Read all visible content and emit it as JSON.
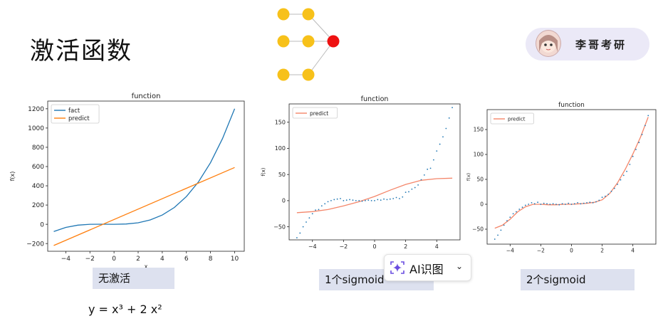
{
  "page": {
    "title": "激活函数",
    "brand": "李哥考研",
    "formula": "y = x³ + 2 x²",
    "ai_button": "AI识图",
    "captions": [
      "无激活",
      "1个sigmoid",
      "2个sigmoid"
    ]
  },
  "colors": {
    "blue": "#1f77b4",
    "orange": "#ff7f0e",
    "salmon": "#f4866a",
    "node_yellow": "#f7c11a",
    "node_red": "#ee1111",
    "caption_bg": "#dde1ef"
  },
  "chart_data": [
    {
      "type": "line",
      "title": "function",
      "xlabel": "x",
      "ylabel": "f(x)",
      "xlim": [
        -5.5,
        10.8
      ],
      "ylim": [
        -280,
        1280
      ],
      "xticks": [
        -4,
        -2,
        0,
        2,
        4,
        6,
        8,
        10
      ],
      "yticks": [
        -200,
        0,
        200,
        400,
        600,
        800,
        1000,
        1200
      ],
      "legend": "top-left",
      "series": [
        {
          "name": "fact",
          "color": "#1f77b4",
          "x": [
            -5,
            -4,
            -3,
            -2,
            -1,
            0,
            1,
            2,
            3,
            4,
            5,
            6,
            7,
            8,
            9,
            10
          ],
          "y": [
            -75,
            -32,
            -9,
            0,
            1,
            0,
            3,
            16,
            45,
            96,
            175,
            288,
            441,
            640,
            891,
            1200
          ]
        },
        {
          "name": "predict",
          "color": "#ff7f0e",
          "x": [
            -5,
            10
          ],
          "y": [
            -220,
            590
          ]
        }
      ]
    },
    {
      "type": "scatter",
      "title": "function",
      "xlabel": "x",
      "ylabel": "f(x)",
      "xlim": [
        -5.5,
        5.5
      ],
      "ylim": [
        -75,
        185
      ],
      "xticks": [
        -4,
        -2,
        0,
        2,
        4
      ],
      "yticks": [
        -50,
        0,
        50,
        100,
        150
      ],
      "legend": "top-left",
      "series": [
        {
          "name": "predict",
          "color": "#f4866a",
          "mode": "line",
          "x": [
            -5,
            -4,
            -3,
            -2,
            -1,
            0,
            1,
            2,
            3,
            4,
            5
          ],
          "y": [
            -23,
            -21,
            -17,
            -10,
            -2,
            8,
            20,
            31,
            39,
            42,
            43
          ]
        },
        {
          "name": "",
          "color": "#1f77b4",
          "mode": "points",
          "x": [
            -5,
            -4.8,
            -4.6,
            -4.4,
            -4.2,
            -4,
            -3.8,
            -3.6,
            -3.4,
            -3.2,
            -3,
            -2.8,
            -2.6,
            -2.4,
            -2.2,
            -2,
            -1.8,
            -1.6,
            -1.4,
            -1.2,
            -1,
            -0.8,
            -0.6,
            -0.4,
            -0.2,
            0,
            0.2,
            0.4,
            0.6,
            0.8,
            1,
            1.2,
            1.4,
            1.6,
            1.8,
            2,
            2.2,
            2.4,
            2.6,
            2.8,
            3,
            3.2,
            3.4,
            3.6,
            3.8,
            4,
            4.2,
            4.4,
            4.6,
            4.8,
            5
          ],
          "y": [
            -71,
            -62,
            -50,
            -41,
            -33,
            -25,
            -18,
            -17,
            -10,
            -6,
            -2,
            0,
            2,
            3,
            4,
            0,
            1,
            2,
            1,
            0,
            0,
            -1,
            0,
            1,
            0,
            0,
            2,
            1,
            3,
            2,
            3,
            4,
            6,
            4,
            7,
            16,
            17,
            22,
            25,
            30,
            40,
            49,
            60,
            62,
            78,
            95,
            108,
            122,
            138,
            158,
            178
          ]
        }
      ]
    },
    {
      "type": "scatter",
      "title": "function",
      "xlabel": "x",
      "ylabel": "f(x)",
      "xlim": [
        -5.5,
        5.5
      ],
      "ylim": [
        -80,
        190
      ],
      "xticks": [
        -4,
        -2,
        0,
        2,
        4
      ],
      "yticks": [
        -50,
        0,
        50,
        100,
        150
      ],
      "legend": "top-left",
      "series": [
        {
          "name": "predict",
          "color": "#f4866a",
          "mode": "line",
          "x": [
            -5,
            -4.5,
            -4,
            -3.5,
            -3,
            -2.5,
            -2,
            -1.5,
            -1,
            -0.5,
            0,
            0.5,
            1,
            1.5,
            2,
            2.5,
            3,
            3.5,
            4,
            4.5,
            5
          ],
          "y": [
            -48,
            -42,
            -30,
            -15,
            -5,
            0,
            0,
            -1,
            -1,
            0,
            0,
            1,
            2,
            4,
            9,
            22,
            43,
            70,
            101,
            135,
            175
          ]
        },
        {
          "name": "",
          "color": "#1f77b4",
          "mode": "points",
          "x": [
            -5,
            -4.8,
            -4.6,
            -4.4,
            -4.2,
            -4,
            -3.8,
            -3.6,
            -3.4,
            -3.2,
            -3,
            -2.8,
            -2.6,
            -2.4,
            -2.2,
            -2,
            -1.8,
            -1.6,
            -1.4,
            -1.2,
            -1,
            -0.8,
            -0.6,
            -0.4,
            -0.2,
            0,
            0.2,
            0.4,
            0.6,
            0.8,
            1,
            1.2,
            1.4,
            1.6,
            1.8,
            2,
            2.2,
            2.4,
            2.6,
            2.8,
            3,
            3.2,
            3.4,
            3.6,
            3.8,
            4,
            4.2,
            4.4,
            4.6,
            4.8,
            5
          ],
          "y": [
            -70,
            -62,
            -52,
            -42,
            -33,
            -26,
            -19,
            -15,
            -10,
            -6,
            -2,
            0,
            3,
            1,
            4,
            0,
            2,
            1,
            0,
            1,
            0,
            -1,
            1,
            0,
            2,
            0,
            1,
            3,
            1,
            2,
            3,
            4,
            3,
            5,
            8,
            14,
            16,
            20,
            26,
            32,
            40,
            49,
            58,
            66,
            80,
            96,
            110,
            124,
            140,
            158,
            178
          ]
        }
      ]
    }
  ]
}
